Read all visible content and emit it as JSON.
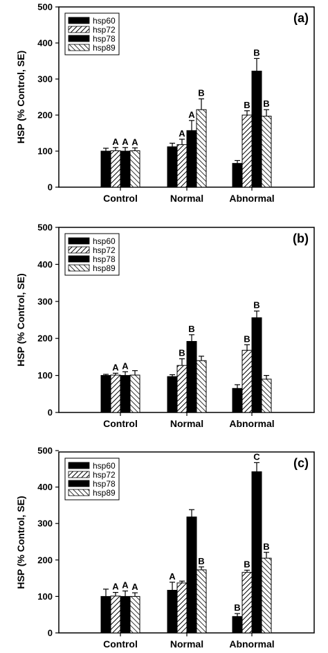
{
  "chart_data": [
    {
      "type": "bar",
      "panel_label": "(a)",
      "ylabel": "HSP (% Control, SE)",
      "ylim": [
        0,
        500
      ],
      "yticks": [
        0,
        100,
        200,
        300,
        400,
        500
      ],
      "categories": [
        "Control",
        "Normal",
        "Abnormal"
      ],
      "legend": "top-left",
      "series": [
        {
          "name": "hsp60",
          "values": [
            100,
            112,
            66
          ],
          "errors": [
            8,
            10,
            8
          ],
          "labels": [
            "",
            "",
            ""
          ]
        },
        {
          "name": "hsp72",
          "values": [
            101,
            118,
            200
          ],
          "errors": [
            9,
            15,
            12
          ],
          "labels": [
            "A",
            "A",
            "B"
          ]
        },
        {
          "name": "hsp78",
          "values": [
            100,
            157,
            322
          ],
          "errors": [
            10,
            28,
            35
          ],
          "labels": [
            "A",
            "A",
            "B"
          ]
        },
        {
          "name": "hsp89",
          "values": [
            101,
            215,
            197
          ],
          "errors": [
            8,
            30,
            18
          ],
          "labels": [
            "A",
            "B",
            "B"
          ]
        }
      ]
    },
    {
      "type": "bar",
      "panel_label": "(b)",
      "ylabel": "HSP (% Control, SE)",
      "ylim": [
        0,
        500
      ],
      "yticks": [
        0,
        100,
        200,
        300,
        400,
        500
      ],
      "categories": [
        "Control",
        "Normal",
        "Abnormal"
      ],
      "legend": "top-left",
      "series": [
        {
          "name": "hsp60",
          "values": [
            100,
            97,
            65
          ],
          "errors": [
            3,
            5,
            10
          ],
          "labels": [
            "",
            "",
            ""
          ]
        },
        {
          "name": "hsp72",
          "values": [
            101,
            127,
            168
          ],
          "errors": [
            5,
            18,
            15
          ],
          "labels": [
            "A",
            "B",
            "B"
          ]
        },
        {
          "name": "hsp78",
          "values": [
            100,
            192,
            256
          ],
          "errors": [
            10,
            18,
            18
          ],
          "labels": [
            "A",
            "B",
            "B"
          ]
        },
        {
          "name": "hsp89",
          "values": [
            101,
            140,
            90
          ],
          "errors": [
            12,
            12,
            10
          ],
          "labels": [
            "",
            "",
            ""
          ]
        }
      ]
    },
    {
      "type": "bar",
      "panel_label": "(c)",
      "ylabel": "HSP (% Control, SE)",
      "ylim": [
        0,
        550
      ],
      "yticks": [
        0,
        100,
        200,
        300,
        400,
        500
      ],
      "categories": [
        "Control",
        "Normal",
        "Abnormal"
      ],
      "legend": "top-left",
      "series": [
        {
          "name": "hsp60",
          "values": [
            100,
            117,
            45
          ],
          "errors": [
            20,
            22,
            8
          ],
          "labels": [
            "",
            "A",
            "B"
          ]
        },
        {
          "name": "hsp72",
          "values": [
            101,
            137,
            166
          ],
          "errors": [
            10,
            5,
            6
          ],
          "labels": [
            "A",
            "",
            "B"
          ]
        },
        {
          "name": "hsp78",
          "values": [
            100,
            318,
            442
          ],
          "errors": [
            15,
            20,
            25
          ],
          "labels": [
            "A",
            "",
            "C"
          ]
        },
        {
          "name": "hsp89",
          "values": [
            100,
            173,
            205
          ],
          "errors": [
            10,
            8,
            16
          ],
          "labels": [
            "A",
            "B",
            "B"
          ]
        }
      ]
    }
  ]
}
